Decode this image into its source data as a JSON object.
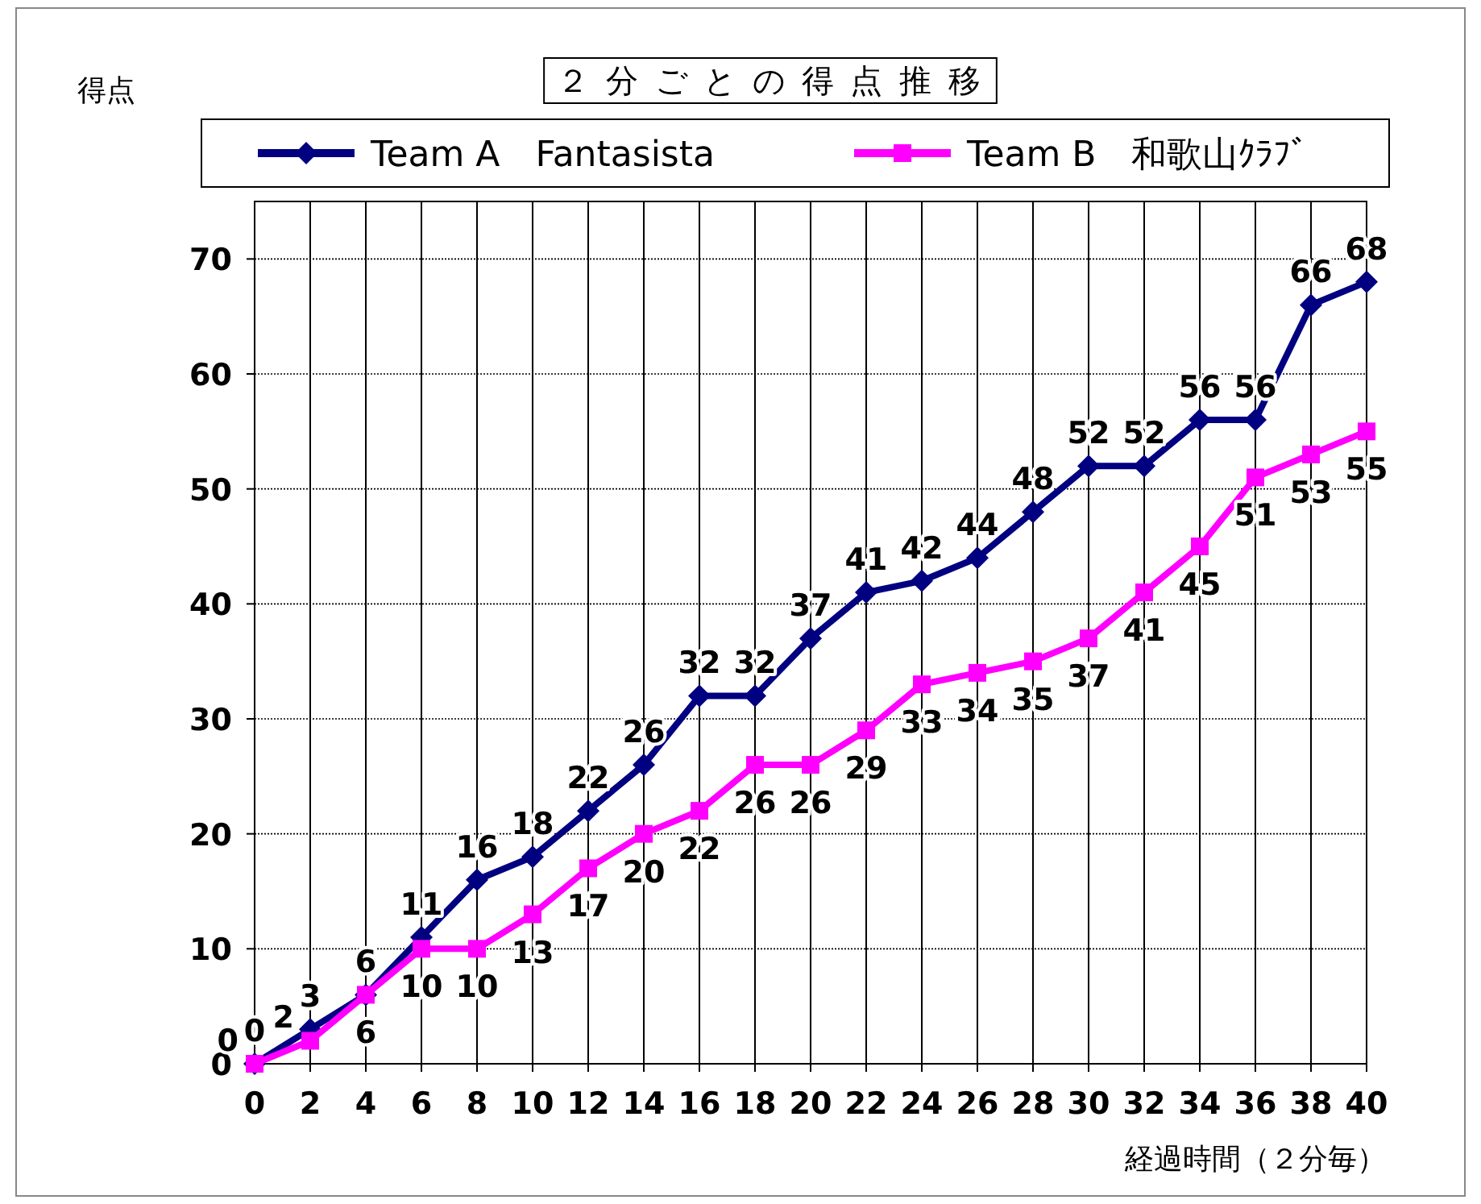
{
  "chart_data": {
    "type": "line",
    "title": "２ 分 ご と の 得 点 推 移",
    "ylabel": "得点",
    "xlabel": "経過時間（２分毎）",
    "x": [
      0,
      2,
      4,
      6,
      8,
      10,
      12,
      14,
      16,
      18,
      20,
      22,
      24,
      26,
      28,
      30,
      32,
      34,
      36,
      38,
      40
    ],
    "series": [
      {
        "name": "Team A　Fantasista",
        "color": "#000080",
        "marker": "diamond",
        "values": [
          0,
          3,
          6,
          11,
          16,
          18,
          22,
          26,
          32,
          32,
          37,
          41,
          42,
          44,
          48,
          52,
          52,
          56,
          56,
          66,
          68
        ]
      },
      {
        "name": "Team B　和歌山ｸﾗﾌﾞ",
        "color": "#ff00ff",
        "marker": "square",
        "values": [
          0,
          2,
          6,
          10,
          10,
          13,
          17,
          20,
          22,
          26,
          26,
          29,
          33,
          34,
          35,
          37,
          41,
          45,
          51,
          53,
          55
        ]
      }
    ],
    "xlim": [
      0,
      40
    ],
    "xticks": [
      0,
      2,
      4,
      6,
      8,
      10,
      12,
      14,
      16,
      18,
      20,
      22,
      24,
      26,
      28,
      30,
      32,
      34,
      36,
      38,
      40
    ],
    "ylim": [
      0,
      75
    ],
    "yticks": [
      0,
      10,
      20,
      30,
      40,
      50,
      60,
      70
    ],
    "grid": true,
    "legend": "top",
    "data_labels": true,
    "line_style": "solid"
  }
}
